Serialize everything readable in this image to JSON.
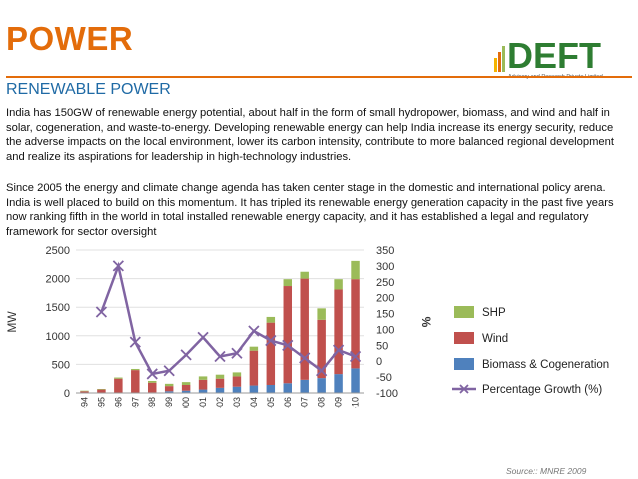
{
  "header": {
    "title": "POWER",
    "subtitle": "RENEWABLE POWER",
    "logo_text": "DEFT",
    "logo_tagline": "Advisory and Research Private Limited"
  },
  "body": {
    "paragraph1": "India has 150GW of renewable energy potential, about half in the form of small hydropower, biomass, and wind and half in solar, cogeneration, and waste-to-energy. Developing renewable energy can help India increase its energy security, reduce the adverse impacts on the local environment, lower its carbon intensity, contribute to more balanced regional development and realize its aspirations for leadership in high-technology industries.",
    "paragraph2": "Since 2005 the energy and climate change agenda has taken center stage in the domestic and international policy arena. India is well placed to build on this momentum. It has tripled its renewable energy generation capacity in the past five years now ranking fifth in the world in total installed renewable energy capacity, and it has established a legal and regulatory framework for sector oversight"
  },
  "source": "Source:: MNRE 2009",
  "colors": {
    "title": "#e36c0a",
    "subtitle": "#1f6aa5",
    "shp": "#9bbb59",
    "wind": "#c0504d",
    "biomass": "#4f81bd",
    "growth": "#8064a2"
  },
  "chart_data": {
    "type": "bar",
    "stacked": true,
    "categories": [
      "1993-94",
      "1994-95",
      "1995-96",
      "1996-97",
      "1997-98",
      "1998-99",
      "1999-2000",
      "2000-01",
      "2001-02",
      "2002-03",
      "2003-04",
      "2004-05",
      "2005-06",
      "2006-07",
      "2007-08",
      "2008-09",
      "2009-10"
    ],
    "series": [
      {
        "name": "Biomass & Cogeneration",
        "axis": "left",
        "values": [
          0,
          0,
          0,
          0,
          10,
          30,
          40,
          60,
          90,
          110,
          130,
          140,
          170,
          230,
          260,
          330,
          430
        ]
      },
      {
        "name": "Wind",
        "axis": "left",
        "values": [
          30,
          60,
          250,
          400,
          170,
          90,
          100,
          170,
          160,
          180,
          610,
          1090,
          1700,
          1770,
          1020,
          1480,
          1560
        ]
      },
      {
        "name": "SHP",
        "axis": "left",
        "values": [
          10,
          10,
          20,
          20,
          30,
          40,
          50,
          60,
          70,
          70,
          70,
          100,
          120,
          120,
          200,
          180,
          320
        ]
      },
      {
        "name": "Percentage Growth (%)",
        "type": "line",
        "axis": "right",
        "values": [
          null,
          155,
          300,
          60,
          -40,
          -30,
          20,
          75,
          15,
          25,
          95,
          65,
          50,
          10,
          -30,
          35,
          15
        ]
      }
    ],
    "ylabel": "MW",
    "y2label": "%",
    "ylim": [
      0,
      2500
    ],
    "yticks": [
      "0",
      "500",
      "1000",
      "1500",
      "2000",
      "2500"
    ],
    "y2lim": [
      -100,
      350
    ],
    "y2ticks": [
      "-100",
      "-50",
      "0",
      "50",
      "100",
      "150",
      "200",
      "250",
      "300",
      "350"
    ],
    "legend_position": "right"
  }
}
